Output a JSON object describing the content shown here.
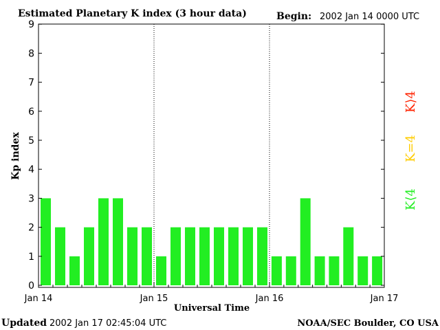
{
  "chart_data": {
    "type": "bar",
    "title": "Estimated Planetary K index (3 hour data)",
    "begin_label": "Begin:",
    "begin_value": "2002 Jan 14 0000 UTC",
    "xlabel": "Universal Time",
    "ylabel": "Kp index",
    "ylim": [
      0,
      9
    ],
    "yticks": [
      "0",
      "1",
      "2",
      "3",
      "4",
      "5",
      "6",
      "7",
      "8",
      "9"
    ],
    "xticks": [
      "Jan 14",
      "Jan 15",
      "Jan 16",
      "Jan 17"
    ],
    "day_separators": true,
    "values": [
      3,
      2,
      1,
      2,
      3,
      3,
      2,
      2,
      1,
      2,
      2,
      2,
      2,
      2,
      2,
      2,
      1,
      1,
      3,
      1,
      1,
      2,
      1,
      1
    ],
    "legend": [
      {
        "label": "K⟨4",
        "color": "#22ee22"
      },
      {
        "label": "K=4",
        "color": "#ffcc00"
      },
      {
        "label": "K⟩4",
        "color": "#ff2200"
      }
    ],
    "colors": {
      "low": "#22ee22",
      "mid": "#ffcc00",
      "high": "#ff2200"
    }
  },
  "footer": {
    "updated_label": "Updated",
    "updated_value": "2002 Jan 17 02:45:04 UTC",
    "credit": "NOAA/SEC Boulder, CO USA"
  }
}
